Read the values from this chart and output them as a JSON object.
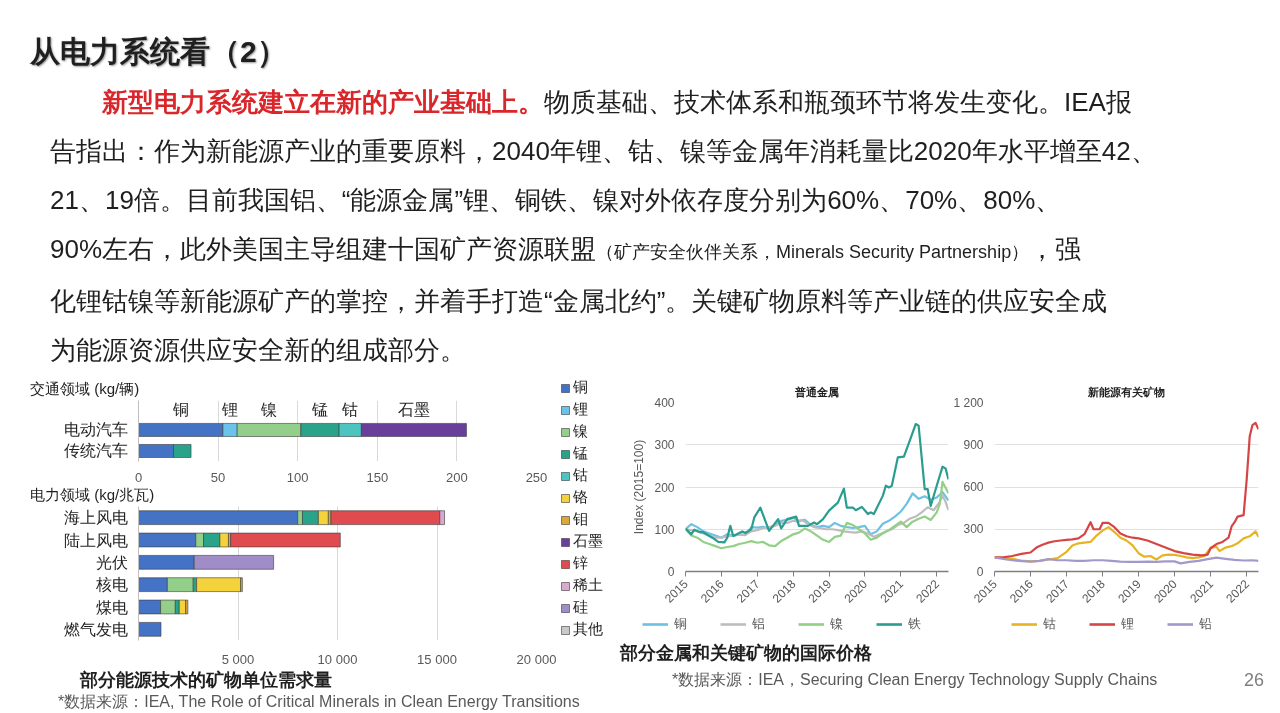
{
  "chart_data": [
    {
      "type": "bar",
      "orientation": "horizontal",
      "stacked": true,
      "ylabel": "交通领域 (kg/辆)",
      "categories": [
        "电动汽车",
        "传统汽车"
      ],
      "series": [
        {
          "name": "铜",
          "color": "#4472c4",
          "values": [
            53,
            22
          ]
        },
        {
          "name": "锂",
          "color": "#6cc3ea",
          "values": [
            9,
            null
          ]
        },
        {
          "name": "镍",
          "color": "#93cf8a",
          "values": [
            40,
            null
          ]
        },
        {
          "name": "锰",
          "color": "#29a48a",
          "values": [
            24,
            11
          ]
        },
        {
          "name": "钴",
          "color": "#4dc4c0",
          "values": [
            14,
            null
          ]
        },
        {
          "name": "石墨",
          "color": "#6a3f9c",
          "values": [
            66,
            null
          ]
        }
      ],
      "xlim": [
        0,
        250
      ],
      "xticks": [
        0,
        50,
        100,
        150,
        200,
        250
      ],
      "grid": "x",
      "annotations": [
        "从电力系统看（2）",
        "新型电力系统建立在新的产业基础上。",
        "物质基础、技术体系和瓶颈环节将发生变化。IEA报",
        "告指出：作为新能源产业的重要原料，2040年锂、钴、镍等金属年消耗量比2020年水平增至42、",
        "21、19倍。目前我国铝、“能源金属”锂、铜铁、镍对外依存度分别为60%、70%、80%、",
        "90%左右，此外美国主导组建十国矿产资源联盟",
        "（矿产安全伙伴关系，Minerals Security Partnership）",
        "，强",
        "化锂钴镍等新能源矿产的掌控，并着手打造“金属北约”。关键矿物原料等产业链的供应安全成",
        "为能源资源供应安全新的组成部分。"
      ]
    },
    {
      "type": "bar",
      "orientation": "horizontal",
      "stacked": true,
      "title": "部分能源技术的矿物单位需求量",
      "ylabel": "电力领域 (kg/兆瓦)",
      "categories": [
        "海上风电",
        "陆上风电",
        "光伏",
        "核电",
        "煤电",
        "燃气发电"
      ],
      "series": [
        {
          "name": "铜",
          "color": "#4472c4",
          "values": [
            8000,
            2880,
            2800,
            1450,
            1110,
            1130
          ]
        },
        {
          "name": "锂",
          "color": "#6cc3ea",
          "values": [
            null,
            null,
            null,
            null,
            null,
            null
          ]
        },
        {
          "name": "镍",
          "color": "#93cf8a",
          "values": [
            240,
            390,
            null,
            1300,
            740,
            null
          ]
        },
        {
          "name": "锰",
          "color": "#29a48a",
          "values": [
            800,
            820,
            null,
            170,
            200,
            null
          ]
        },
        {
          "name": "钴",
          "color": "#4dc4c0",
          "values": [
            null,
            null,
            null,
            null,
            null,
            null
          ]
        },
        {
          "name": "铬",
          "color": "#f4d23c",
          "values": [
            500,
            430,
            null,
            2210,
            320,
            null
          ]
        },
        {
          "name": "钼",
          "color": "#dba838",
          "values": [
            130,
            110,
            null,
            90,
            110,
            null
          ]
        },
        {
          "name": "石墨",
          "color": "#6a3f9c",
          "values": [
            null,
            null,
            null,
            null,
            null,
            null
          ]
        },
        {
          "name": "锌",
          "color": "#e04b4f",
          "values": [
            5470,
            5510,
            null,
            null,
            null,
            null
          ]
        },
        {
          "name": "稀土",
          "color": "#d8a8d0",
          "values": [
            240,
            null,
            null,
            null,
            null,
            null
          ]
        },
        {
          "name": "硅",
          "color": "#a08dc8",
          "values": [
            null,
            null,
            3990,
            null,
            null,
            null
          ]
        },
        {
          "name": "其他",
          "color": "#c9c9c9",
          "values": [
            null,
            null,
            null,
            null,
            null,
            null
          ]
        }
      ],
      "xlim": [
        0,
        20000
      ],
      "xticks": [
        {
          "value": 5000,
          "label": "5 000"
        },
        {
          "value": 10000,
          "label": "10 000"
        },
        {
          "value": 15000,
          "label": "15 000"
        },
        {
          "value": 20000,
          "label": "20 000"
        }
      ],
      "grid": "x",
      "legend": "right",
      "annotations": [
        "*数据来源：IEA, The Role of Critical Minerals in Clean Energy Transitions"
      ]
    },
    {
      "type": "line",
      "title": "普通金属",
      "ylabel": "Index (2015=100)",
      "xlim": [
        "2015-01",
        "2022-05"
      ],
      "xticks": [
        "2015",
        "2016",
        "2017",
        "2018",
        "2019",
        "2020",
        "2021",
        "2022"
      ],
      "ylim": [
        0,
        400
      ],
      "yticks": [
        0,
        100,
        200,
        300,
        400
      ],
      "grid": "y",
      "legend": "bottom",
      "series": [
        {
          "name": "铜",
          "color": "#6ec1e4",
          "x": [
            "2015-01",
            "2015-03",
            "2015-05",
            "2015-07",
            "2015-09",
            "2015-11",
            "2016-01",
            "2016-03",
            "2016-05",
            "2016-07",
            "2016-09",
            "2016-11",
            "2017-01",
            "2017-03",
            "2017-05",
            "2017-07",
            "2017-09",
            "2017-11",
            "2018-01",
            "2018-03",
            "2018-05",
            "2018-07",
            "2018-09",
            "2018-11",
            "2019-01",
            "2019-03",
            "2019-05",
            "2019-07",
            "2019-09",
            "2019-11",
            "2020-01",
            "2020-03",
            "2020-05",
            "2020-07",
            "2020-09",
            "2020-11",
            "2021-01",
            "2021-03",
            "2021-05",
            "2021-07",
            "2021-09",
            "2021-11",
            "2022-01",
            "2022-03",
            "2022-05"
          ],
          "values": [
            100,
            112,
            105,
            95,
            90,
            85,
            80,
            88,
            85,
            88,
            86,
            105,
            104,
            106,
            102,
            110,
            120,
            122,
            127,
            120,
            122,
            110,
            105,
            108,
            105,
            115,
            108,
            105,
            103,
            105,
            108,
            88,
            95,
            113,
            120,
            130,
            142,
            160,
            185,
            172,
            178,
            170,
            175,
            188,
            168
          ]
        },
        {
          "name": "铝",
          "color": "#bdbdbd",
          "x": [
            "2015-01",
            "2015-03",
            "2015-05",
            "2015-07",
            "2015-09",
            "2015-11",
            "2016-01",
            "2016-03",
            "2016-05",
            "2016-07",
            "2016-09",
            "2016-11",
            "2017-01",
            "2017-03",
            "2017-05",
            "2017-07",
            "2017-09",
            "2017-11",
            "2018-01",
            "2018-03",
            "2018-04",
            "2018-06",
            "2018-08",
            "2018-10",
            "2018-12",
            "2019-02",
            "2019-04",
            "2019-06",
            "2019-08",
            "2019-10",
            "2019-12",
            "2020-02",
            "2020-04",
            "2020-06",
            "2020-08",
            "2020-10",
            "2020-12",
            "2021-02",
            "2021-04",
            "2021-06",
            "2021-08",
            "2021-10",
            "2021-12",
            "2022-02",
            "2022-03",
            "2022-04",
            "2022-05"
          ],
          "values": [
            100,
            98,
            95,
            90,
            85,
            80,
            80,
            83,
            85,
            88,
            87,
            95,
            98,
            103,
            105,
            108,
            115,
            115,
            120,
            118,
            122,
            112,
            105,
            103,
            100,
            100,
            98,
            95,
            93,
            92,
            95,
            90,
            82,
            88,
            95,
            100,
            110,
            115,
            125,
            130,
            140,
            152,
            145,
            165,
            180,
            165,
            145
          ]
        },
        {
          "name": "镍",
          "color": "#93cf87",
          "x": [
            "2015-01",
            "2015-03",
            "2015-05",
            "2015-07",
            "2015-09",
            "2015-11",
            "2016-01",
            "2016-03",
            "2016-05",
            "2016-07",
            "2016-09",
            "2016-11",
            "2017-01",
            "2017-03",
            "2017-05",
            "2017-07",
            "2017-09",
            "2017-11",
            "2018-01",
            "2018-03",
            "2018-05",
            "2018-07",
            "2018-09",
            "2018-11",
            "2019-01",
            "2019-03",
            "2019-05",
            "2019-07",
            "2019-09",
            "2019-11",
            "2020-01",
            "2020-03",
            "2020-05",
            "2020-07",
            "2020-09",
            "2020-11",
            "2021-01",
            "2021-03",
            "2021-05",
            "2021-07",
            "2021-09",
            "2021-11",
            "2022-01",
            "2022-02",
            "2022-03",
            "2022-05"
          ],
          "values": [
            100,
            85,
            80,
            70,
            65,
            60,
            55,
            58,
            60,
            65,
            68,
            72,
            68,
            70,
            62,
            60,
            72,
            80,
            88,
            92,
            102,
            95,
            85,
            75,
            70,
            82,
            85,
            115,
            110,
            100,
            90,
            75,
            80,
            90,
            98,
            108,
            118,
            105,
            118,
            125,
            130,
            122,
            140,
            160,
            212,
            185
          ]
        },
        {
          "name": "铁",
          "color": "#2a9d8f",
          "x": [
            "2015-01",
            "2015-03",
            "2015-04",
            "2015-06",
            "2015-07",
            "2015-09",
            "2015-10",
            "2015-12",
            "2016-02",
            "2016-03",
            "2016-04",
            "2016-05",
            "2016-07",
            "2016-08",
            "2016-09",
            "2016-11",
            "2016-12",
            "2017-02",
            "2017-05",
            "2017-08",
            "2017-09",
            "2017-11",
            "2018-02",
            "2018-03",
            "2018-06",
            "2018-08",
            "2018-09",
            "2018-11",
            "2019-01",
            "2019-04",
            "2019-06",
            "2019-07",
            "2019-09",
            "2019-10",
            "2019-12",
            "2020-02",
            "2020-03",
            "2020-04",
            "2020-07",
            "2020-08",
            "2020-09",
            "2020-10",
            "2020-12",
            "2021-02",
            "2021-04",
            "2021-06",
            "2021-07",
            "2021-09",
            "2021-10",
            "2021-11",
            "2022-01",
            "2022-03",
            "2022-04",
            "2022-05"
          ],
          "values": [
            102,
            88,
            99,
            93,
            93,
            84,
            80,
            70,
            69,
            80,
            108,
            84,
            91,
            95,
            91,
            100,
            128,
            151,
            96,
            124,
            102,
            124,
            130,
            108,
            108,
            116,
            112,
            124,
            144,
            163,
            196,
            151,
            151,
            145,
            153,
            136,
            140,
            136,
            179,
            203,
            199,
            203,
            270,
            272,
            309,
            349,
            345,
            195,
            195,
            155,
            203,
            248,
            244,
            218
          ]
        }
      ]
    },
    {
      "type": "line",
      "title": "新能源有关矿物",
      "xlim": [
        "2015-01",
        "2022-05"
      ],
      "xticks": [
        "2015",
        "2016",
        "2017",
        "2018",
        "2019",
        "2020",
        "2021",
        "2022"
      ],
      "ylim": [
        0,
        1200
      ],
      "yticks": [
        0,
        300,
        600,
        900,
        {
          "value": 1200,
          "label": "1 200"
        }
      ],
      "grid": "y",
      "legend": "bottom",
      "series": [
        {
          "name": "钴",
          "color": "#e6b422",
          "x": [
            "2015-01",
            "2015-04",
            "2015-07",
            "2015-10",
            "2016-01",
            "2016-04",
            "2016-07",
            "2016-10",
            "2017-01",
            "2017-03",
            "2017-05",
            "2017-07",
            "2017-09",
            "2017-11",
            "2018-01",
            "2018-03",
            "2018-05",
            "2018-07",
            "2018-09",
            "2018-11",
            "2019-01",
            "2019-03",
            "2019-05",
            "2019-07",
            "2019-09",
            "2019-11",
            "2020-01",
            "2020-03",
            "2020-05",
            "2020-07",
            "2020-09",
            "2020-11",
            "2021-01",
            "2021-03",
            "2021-04",
            "2021-06",
            "2021-08",
            "2021-10",
            "2021-12",
            "2022-02",
            "2022-04",
            "2022-05"
          ],
          "values": [
            100,
            95,
            90,
            78,
            72,
            75,
            85,
            95,
            140,
            185,
            200,
            205,
            210,
            255,
            290,
            315,
            280,
            240,
            220,
            185,
            130,
            105,
            110,
            85,
            115,
            120,
            118,
            110,
            100,
            95,
            100,
            110,
            170,
            175,
            145,
            170,
            180,
            200,
            235,
            250,
            285,
            245
          ]
        },
        {
          "name": "锂",
          "color": "#d64545",
          "x": [
            "2015-01",
            "2015-04",
            "2015-07",
            "2015-10",
            "2016-01",
            "2016-03",
            "2016-05",
            "2016-07",
            "2016-09",
            "2016-11",
            "2017-01",
            "2017-03",
            "2017-05",
            "2017-07",
            "2017-09",
            "2017-10",
            "2017-12",
            "2018-01",
            "2018-03",
            "2018-05",
            "2018-07",
            "2018-09",
            "2018-11",
            "2019-01",
            "2019-04",
            "2019-07",
            "2019-10",
            "2020-01",
            "2020-04",
            "2020-07",
            "2020-10",
            "2020-12",
            "2021-01",
            "2021-03",
            "2021-05",
            "2021-07",
            "2021-08",
            "2021-09",
            "2021-10",
            "2021-12",
            "2022-01",
            "2022-02",
            "2022-03",
            "2022-04",
            "2022-05"
          ],
          "values": [
            100,
            100,
            110,
            125,
            135,
            170,
            190,
            205,
            215,
            220,
            225,
            228,
            235,
            265,
            350,
            300,
            300,
            345,
            345,
            315,
            270,
            250,
            240,
            235,
            220,
            195,
            170,
            145,
            130,
            120,
            115,
            120,
            165,
            195,
            210,
            240,
            320,
            350,
            390,
            400,
            650,
            960,
            1040,
            1055,
            1010
          ]
        },
        {
          "name": "铅",
          "color": "#a398cc",
          "x": [
            "2015-01",
            "2015-05",
            "2015-09",
            "2016-01",
            "2016-04",
            "2016-07",
            "2016-10",
            "2017-01",
            "2017-04",
            "2017-07",
            "2017-10",
            "2018-01",
            "2018-04",
            "2018-07",
            "2018-10",
            "2019-01",
            "2019-04",
            "2019-07",
            "2019-10",
            "2020-01",
            "2020-03",
            "2020-06",
            "2020-09",
            "2020-12",
            "2021-03",
            "2021-06",
            "2021-09",
            "2021-12",
            "2022-03",
            "2022-05"
          ],
          "values": [
            100,
            85,
            75,
            70,
            75,
            88,
            80,
            80,
            75,
            75,
            80,
            80,
            75,
            70,
            68,
            68,
            70,
            68,
            72,
            72,
            58,
            68,
            75,
            88,
            98,
            90,
            82,
            78,
            80,
            75
          ]
        }
      ],
      "annotations": [
        "部分金属和关键矿物的国际价格",
        "*数据来源：IEA，Securing Clean Energy Technology Supply Chains",
        "26"
      ]
    }
  ]
}
